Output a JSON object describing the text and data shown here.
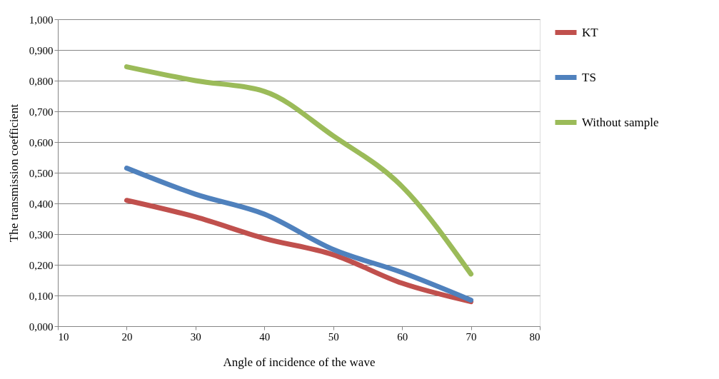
{
  "chart_data": {
    "type": "line",
    "xlabel": "Angle of incidence of the wave",
    "ylabel": "The transmission coefficient",
    "x": [
      20,
      30,
      40,
      50,
      60,
      70
    ],
    "series": [
      {
        "name": "KT",
        "color": "#c0504d",
        "values": [
          0.41,
          0.356,
          0.286,
          0.233,
          0.14,
          0.08
        ]
      },
      {
        "name": "TS",
        "color": "#4f81bd",
        "values": [
          0.515,
          0.43,
          0.365,
          0.25,
          0.175,
          0.085
        ]
      },
      {
        "name": "Without sample",
        "color": "#9bbb59",
        "values": [
          0.845,
          0.8,
          0.765,
          0.62,
          0.455,
          0.17
        ]
      }
    ],
    "xlim": [
      10,
      80
    ],
    "xticks": [
      10,
      20,
      30,
      40,
      50,
      60,
      70,
      80
    ],
    "ylim": [
      0,
      1
    ],
    "yticks": [
      {
        "value": 0,
        "label": "0,000"
      },
      {
        "value": 0.1,
        "label": "0,100"
      },
      {
        "value": 0.2,
        "label": "0,200"
      },
      {
        "value": 0.3,
        "label": "0,300"
      },
      {
        "value": 0.4,
        "label": "0,400"
      },
      {
        "value": 0.5,
        "label": "0,500"
      },
      {
        "value": 0.6,
        "label": "0,600"
      },
      {
        "value": 0.7,
        "label": "0,700"
      },
      {
        "value": 0.8,
        "label": "0,800"
      },
      {
        "value": 0.9,
        "label": "0,900"
      },
      {
        "value": 1,
        "label": "1,000"
      }
    ],
    "grid": "y",
    "legend": "right",
    "marker": "none",
    "line_style": "solid"
  }
}
